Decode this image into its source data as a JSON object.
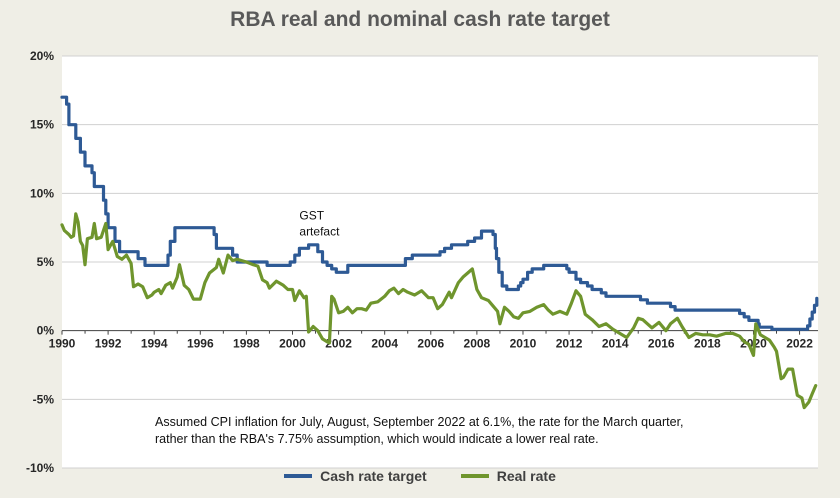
{
  "colors": {
    "cash": "#2e5a95",
    "real": "#6f952d",
    "grid": "#d0d0d0",
    "background": "#efeee6"
  },
  "chart_data": {
    "type": "line",
    "title": "RBA real and nominal cash rate target",
    "xlabel": "",
    "ylabel": "",
    "xlim": [
      1990,
      2022.8
    ],
    "ylim": [
      -10,
      20
    ],
    "y_ticks": [
      "-10%",
      "-5%",
      "0%",
      "5%",
      "10%",
      "15%",
      "20%"
    ],
    "y_tick_values": [
      -10,
      -5,
      0,
      5,
      10,
      15,
      20
    ],
    "x_ticks": [
      "1990",
      "1992",
      "1994",
      "1996",
      "1998",
      "2000",
      "2002",
      "2004",
      "2006",
      "2008",
      "2010",
      "2012",
      "2014",
      "2016",
      "2018",
      "2020",
      "2022"
    ],
    "x_tick_values": [
      1990,
      1992,
      1994,
      1996,
      1998,
      2000,
      2002,
      2004,
      2006,
      2008,
      2010,
      2012,
      2014,
      2016,
      2018,
      2020,
      2022
    ],
    "grid": "horizontal",
    "legend_position": "bottom",
    "series": [
      {
        "name": "Cash rate target",
        "color": "#2e5a95",
        "step": true,
        "points": [
          [
            1990.0,
            17.0
          ],
          [
            1990.2,
            16.5
          ],
          [
            1990.3,
            15.0
          ],
          [
            1990.6,
            14.0
          ],
          [
            1990.8,
            13.0
          ],
          [
            1991.0,
            12.0
          ],
          [
            1991.3,
            11.5
          ],
          [
            1991.4,
            10.5
          ],
          [
            1991.8,
            9.5
          ],
          [
            1991.9,
            8.5
          ],
          [
            1992.0,
            7.5
          ],
          [
            1992.3,
            6.5
          ],
          [
            1992.5,
            5.75
          ],
          [
            1993.3,
            5.25
          ],
          [
            1993.6,
            4.75
          ],
          [
            1994.6,
            5.5
          ],
          [
            1994.7,
            6.5
          ],
          [
            1994.9,
            7.5
          ],
          [
            1996.6,
            7.0
          ],
          [
            1996.7,
            6.0
          ],
          [
            1997.4,
            5.5
          ],
          [
            1997.6,
            5.0
          ],
          [
            1998.9,
            4.75
          ],
          [
            1999.9,
            5.0
          ],
          [
            2000.1,
            5.5
          ],
          [
            2000.3,
            6.0
          ],
          [
            2000.7,
            6.25
          ],
          [
            2001.1,
            5.75
          ],
          [
            2001.3,
            5.0
          ],
          [
            2001.5,
            4.75
          ],
          [
            2001.7,
            4.5
          ],
          [
            2001.9,
            4.25
          ],
          [
            2002.4,
            4.75
          ],
          [
            2004.9,
            5.25
          ],
          [
            2005.2,
            5.5
          ],
          [
            2006.4,
            5.75
          ],
          [
            2006.6,
            6.0
          ],
          [
            2006.9,
            6.25
          ],
          [
            2007.6,
            6.5
          ],
          [
            2007.9,
            6.75
          ],
          [
            2008.2,
            7.25
          ],
          [
            2008.7,
            7.0
          ],
          [
            2008.8,
            6.0
          ],
          [
            2008.85,
            5.25
          ],
          [
            2008.95,
            4.25
          ],
          [
            2009.1,
            3.25
          ],
          [
            2009.3,
            3.0
          ],
          [
            2009.8,
            3.25
          ],
          [
            2009.9,
            3.5
          ],
          [
            2010.0,
            3.75
          ],
          [
            2010.2,
            4.25
          ],
          [
            2010.4,
            4.5
          ],
          [
            2010.9,
            4.75
          ],
          [
            2011.9,
            4.5
          ],
          [
            2012.0,
            4.25
          ],
          [
            2012.3,
            3.75
          ],
          [
            2012.5,
            3.5
          ],
          [
            2012.8,
            3.25
          ],
          [
            2013.0,
            3.0
          ],
          [
            2013.4,
            2.75
          ],
          [
            2013.6,
            2.5
          ],
          [
            2015.1,
            2.25
          ],
          [
            2015.4,
            2.0
          ],
          [
            2016.4,
            1.75
          ],
          [
            2016.6,
            1.5
          ],
          [
            2019.4,
            1.25
          ],
          [
            2019.6,
            1.0
          ],
          [
            2019.8,
            0.75
          ],
          [
            2020.2,
            0.5
          ],
          [
            2020.25,
            0.25
          ],
          [
            2020.8,
            0.1
          ],
          [
            2022.35,
            0.35
          ],
          [
            2022.45,
            0.85
          ],
          [
            2022.55,
            1.35
          ],
          [
            2022.65,
            1.85
          ],
          [
            2022.75,
            2.35
          ]
        ]
      },
      {
        "name": "Real rate",
        "color": "#6f952d",
        "step": false,
        "points": [
          [
            1990.0,
            7.7
          ],
          [
            1990.1,
            7.3
          ],
          [
            1990.3,
            7.0
          ],
          [
            1990.4,
            6.8
          ],
          [
            1990.5,
            6.9
          ],
          [
            1990.6,
            8.5
          ],
          [
            1990.7,
            7.9
          ],
          [
            1990.8,
            6.5
          ],
          [
            1990.9,
            6.2
          ],
          [
            1991.0,
            4.8
          ],
          [
            1991.1,
            6.7
          ],
          [
            1991.3,
            6.8
          ],
          [
            1991.4,
            7.8
          ],
          [
            1991.5,
            6.7
          ],
          [
            1991.7,
            6.8
          ],
          [
            1991.9,
            7.8
          ],
          [
            1992.0,
            5.9
          ],
          [
            1992.2,
            6.5
          ],
          [
            1992.4,
            5.4
          ],
          [
            1992.6,
            5.2
          ],
          [
            1992.8,
            5.5
          ],
          [
            1993.0,
            4.9
          ],
          [
            1993.1,
            3.2
          ],
          [
            1993.3,
            3.4
          ],
          [
            1993.5,
            3.2
          ],
          [
            1993.7,
            2.4
          ],
          [
            1993.9,
            2.6
          ],
          [
            1994.0,
            2.8
          ],
          [
            1994.2,
            3.0
          ],
          [
            1994.3,
            2.7
          ],
          [
            1994.5,
            3.3
          ],
          [
            1994.7,
            3.5
          ],
          [
            1994.8,
            3.1
          ],
          [
            1995.0,
            3.9
          ],
          [
            1995.1,
            4.8
          ],
          [
            1995.3,
            3.3
          ],
          [
            1995.5,
            3.0
          ],
          [
            1995.7,
            2.3
          ],
          [
            1996.0,
            2.3
          ],
          [
            1996.2,
            3.5
          ],
          [
            1996.4,
            4.2
          ],
          [
            1996.7,
            4.6
          ],
          [
            1996.8,
            5.2
          ],
          [
            1996.9,
            4.7
          ],
          [
            1997.0,
            4.2
          ],
          [
            1997.2,
            5.5
          ],
          [
            1997.4,
            5.1
          ],
          [
            1997.6,
            5.2
          ],
          [
            1998.0,
            5.0
          ],
          [
            1998.3,
            4.8
          ],
          [
            1998.5,
            4.7
          ],
          [
            1998.7,
            3.7
          ],
          [
            1998.9,
            3.5
          ],
          [
            1999.0,
            3.1
          ],
          [
            1999.3,
            3.6
          ],
          [
            1999.6,
            3.3
          ],
          [
            1999.8,
            3.0
          ],
          [
            2000.0,
            3.0
          ],
          [
            2000.1,
            2.2
          ],
          [
            2000.3,
            2.9
          ],
          [
            2000.5,
            2.4
          ],
          [
            2000.6,
            2.5
          ],
          [
            2000.7,
            -0.1
          ],
          [
            2000.9,
            0.3
          ],
          [
            2001.1,
            0.0
          ],
          [
            2001.3,
            -0.6
          ],
          [
            2001.5,
            -0.8
          ],
          [
            2001.6,
            -0.9
          ],
          [
            2001.7,
            2.5
          ],
          [
            2001.8,
            2.3
          ],
          [
            2002.0,
            1.3
          ],
          [
            2002.2,
            1.4
          ],
          [
            2002.4,
            1.7
          ],
          [
            2002.6,
            1.3
          ],
          [
            2002.8,
            1.6
          ],
          [
            2003.0,
            1.6
          ],
          [
            2003.2,
            1.5
          ],
          [
            2003.4,
            2.0
          ],
          [
            2003.7,
            2.1
          ],
          [
            2004.0,
            2.5
          ],
          [
            2004.2,
            2.9
          ],
          [
            2004.4,
            3.1
          ],
          [
            2004.6,
            2.7
          ],
          [
            2004.8,
            3.0
          ],
          [
            2005.0,
            2.8
          ],
          [
            2005.3,
            2.6
          ],
          [
            2005.6,
            2.9
          ],
          [
            2005.9,
            2.4
          ],
          [
            2006.1,
            2.4
          ],
          [
            2006.3,
            1.6
          ],
          [
            2006.5,
            1.9
          ],
          [
            2006.8,
            2.8
          ],
          [
            2006.9,
            2.4
          ],
          [
            2007.2,
            3.5
          ],
          [
            2007.4,
            3.9
          ],
          [
            2007.6,
            4.2
          ],
          [
            2007.8,
            4.5
          ],
          [
            2008.0,
            3.0
          ],
          [
            2008.2,
            2.4
          ],
          [
            2008.5,
            2.2
          ],
          [
            2008.7,
            1.8
          ],
          [
            2008.9,
            1.4
          ],
          [
            2009.0,
            0.5
          ],
          [
            2009.2,
            1.7
          ],
          [
            2009.4,
            1.4
          ],
          [
            2009.6,
            1.0
          ],
          [
            2009.8,
            0.9
          ],
          [
            2010.0,
            1.3
          ],
          [
            2010.3,
            1.4
          ],
          [
            2010.6,
            1.7
          ],
          [
            2010.9,
            1.9
          ],
          [
            2011.1,
            1.5
          ],
          [
            2011.3,
            1.2
          ],
          [
            2011.6,
            1.4
          ],
          [
            2011.9,
            1.2
          ],
          [
            2012.1,
            2.0
          ],
          [
            2012.3,
            2.9
          ],
          [
            2012.5,
            2.5
          ],
          [
            2012.7,
            1.2
          ],
          [
            2013.0,
            0.8
          ],
          [
            2013.3,
            0.3
          ],
          [
            2013.6,
            0.5
          ],
          [
            2013.9,
            0.1
          ],
          [
            2014.3,
            -0.3
          ],
          [
            2014.5,
            -0.5
          ],
          [
            2014.8,
            0.2
          ],
          [
            2015.0,
            0.9
          ],
          [
            2015.2,
            0.8
          ],
          [
            2015.4,
            0.5
          ],
          [
            2015.6,
            0.2
          ],
          [
            2015.9,
            0.6
          ],
          [
            2016.2,
            0.0
          ],
          [
            2016.4,
            0.5
          ],
          [
            2016.7,
            0.9
          ],
          [
            2016.9,
            0.3
          ],
          [
            2017.2,
            -0.5
          ],
          [
            2017.5,
            -0.2
          ],
          [
            2017.8,
            -0.3
          ],
          [
            2018.1,
            -0.3
          ],
          [
            2018.4,
            -0.4
          ],
          [
            2018.8,
            -0.2
          ],
          [
            2019.1,
            -0.2
          ],
          [
            2019.4,
            -0.4
          ],
          [
            2019.6,
            -0.8
          ],
          [
            2019.8,
            -1.0
          ],
          [
            2020.0,
            -1.8
          ],
          [
            2020.1,
            0.5
          ],
          [
            2020.3,
            -0.3
          ],
          [
            2020.5,
            -0.5
          ],
          [
            2020.7,
            -0.7
          ],
          [
            2020.9,
            -1.2
          ],
          [
            2021.0,
            -1.5
          ],
          [
            2021.2,
            -3.5
          ],
          [
            2021.3,
            -3.4
          ],
          [
            2021.5,
            -2.8
          ],
          [
            2021.7,
            -2.8
          ],
          [
            2021.9,
            -4.7
          ],
          [
            2022.1,
            -4.9
          ],
          [
            2022.2,
            -5.6
          ],
          [
            2022.4,
            -5.2
          ],
          [
            2022.55,
            -4.6
          ],
          [
            2022.7,
            -4.0
          ]
        ]
      }
    ],
    "annotations": [
      {
        "lines": [
          "GST",
          "artefact"
        ],
        "x": 2000.3,
        "y": 8.1
      }
    ]
  },
  "note": {
    "line1": "Assumed CPI inflation for July, August, September 2022 at 6.1%, the rate for the March quarter,",
    "line2": "rather than the RBA's 7.75% assumption, which would indicate a lower real rate."
  }
}
